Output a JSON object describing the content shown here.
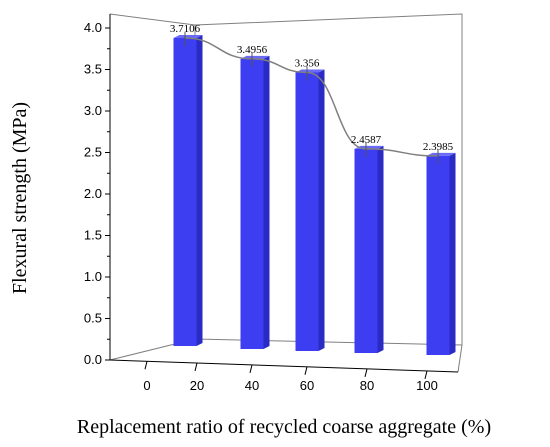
{
  "chart_data": {
    "type": "bar",
    "style": "3d",
    "categories": [
      "20",
      "40",
      "60",
      "80",
      "100"
    ],
    "values": [
      3.7106,
      3.4956,
      3.356,
      2.4587,
      2.3985
    ],
    "data_labels": [
      "3.7106",
      "3.4956",
      "3.356",
      "2.4587",
      "2.3985"
    ],
    "xlabel": "Replacement ratio of recycled coarse aggregate (%)",
    "ylabel": "Flexural strength (MPa)",
    "x_ticks": [
      "0",
      "20",
      "40",
      "60",
      "80",
      "100"
    ],
    "y_ticks": [
      "0.0",
      "0.5",
      "1.0",
      "1.5",
      "2.0",
      "2.5",
      "3.0",
      "3.5",
      "4.0"
    ],
    "ylim": [
      0,
      4
    ],
    "xlim": [
      0,
      100
    ],
    "trend_line": "smooth curve through bar tops",
    "colors": {
      "bar": "#3d3df2",
      "bar_side": "#2a2ac4",
      "bar_top": "#6a6af7",
      "frame": "#808080",
      "trend": "#808080"
    },
    "grid": false,
    "legend": "none"
  }
}
